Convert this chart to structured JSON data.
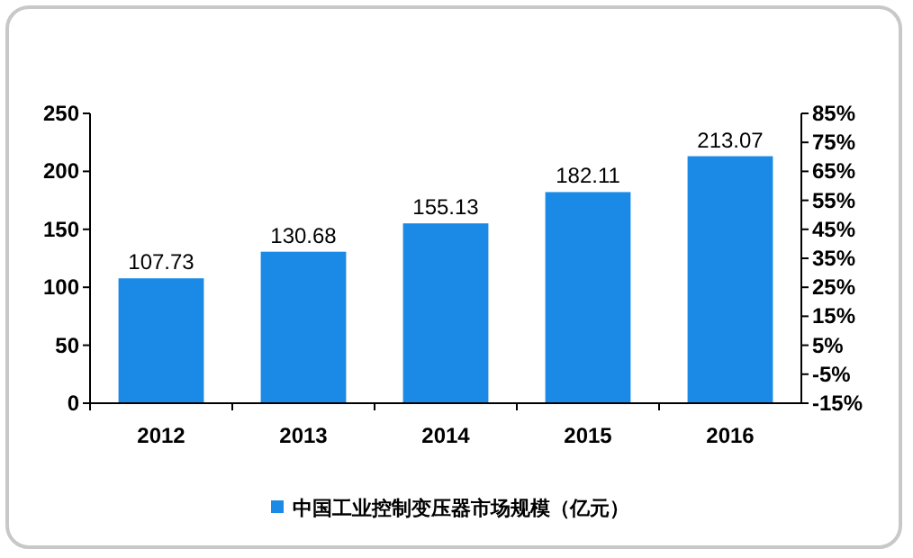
{
  "chart_data": {
    "type": "bar",
    "categories": [
      "2012",
      "2013",
      "2014",
      "2015",
      "2016"
    ],
    "series": [
      {
        "name": "中国工业控制变压器市场规模（亿元）",
        "color": "#1a8ae6",
        "values": [
          107.73,
          130.68,
          155.13,
          182.11,
          213.07
        ]
      }
    ],
    "ylim": [
      0,
      250
    ],
    "yticks": [
      0,
      50,
      100,
      150,
      200,
      250
    ],
    "y2lim": [
      -15,
      85
    ],
    "y2ticks": [
      {
        "value": -15,
        "label": "-15%"
      },
      {
        "value": -5,
        "label": "-5%"
      },
      {
        "value": 5,
        "label": "5%"
      },
      {
        "value": 15,
        "label": "15%"
      },
      {
        "value": 25,
        "label": "25%"
      },
      {
        "value": 35,
        "label": "35%"
      },
      {
        "value": 45,
        "label": "45%"
      },
      {
        "value": 55,
        "label": "55%"
      },
      {
        "value": 65,
        "label": "65%"
      },
      {
        "value": 75,
        "label": "75%"
      },
      {
        "value": 85,
        "label": "85%"
      }
    ],
    "data_labels": true,
    "legend": "bottom",
    "grid": false
  }
}
